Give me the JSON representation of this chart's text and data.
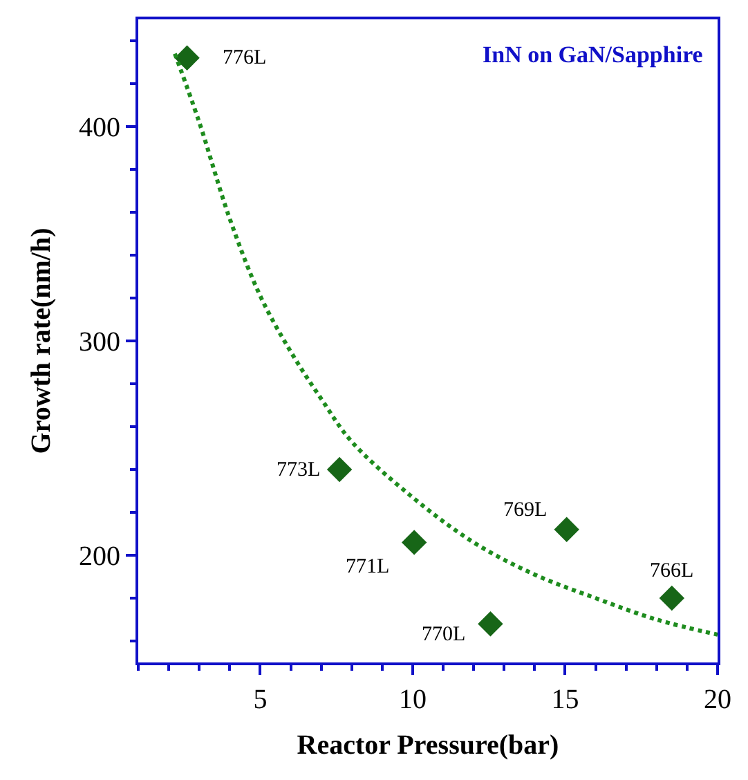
{
  "chart_data": {
    "type": "scatter",
    "xlabel": "Reactor Pressure(bar)",
    "ylabel": "Growth rate(nm/h)",
    "series": [
      {
        "color": "#176617",
        "marker": "diamond",
        "x": [
          2.6,
          7.6,
          10.05,
          12.55,
          15.05,
          18.5
        ],
        "values": [
          432,
          240,
          206,
          168,
          212,
          180
        ]
      },
      {
        "type": "line",
        "color": "#1e8c1e",
        "line_style": "dotted",
        "marker": "none",
        "x": [
          2.2,
          3,
          4,
          5,
          6,
          7,
          8,
          10,
          12,
          14,
          16,
          18,
          20
        ],
        "values": [
          434,
          402,
          357,
          321,
          295,
          273,
          253,
          227,
          206,
          191,
          180,
          170,
          163
        ]
      }
    ],
    "annotations": [
      {
        "text": "InN on GaN/Sapphire"
      },
      {
        "text": "776L",
        "x": 2.6,
        "y": 432
      },
      {
        "text": "773L",
        "x": 7.6,
        "y": 240
      },
      {
        "text": "771L",
        "x": 10.05,
        "y": 206
      },
      {
        "text": "770L",
        "x": 12.55,
        "y": 168
      },
      {
        "text": "769L",
        "x": 15.05,
        "y": 212
      },
      {
        "text": "766L",
        "x": 18.5,
        "y": 180
      }
    ],
    "xlim": [
      1,
      20
    ],
    "ylim": [
      150,
      450
    ],
    "xticks": [
      5,
      10,
      15,
      20
    ],
    "yticks": [
      200,
      300,
      400
    ]
  }
}
